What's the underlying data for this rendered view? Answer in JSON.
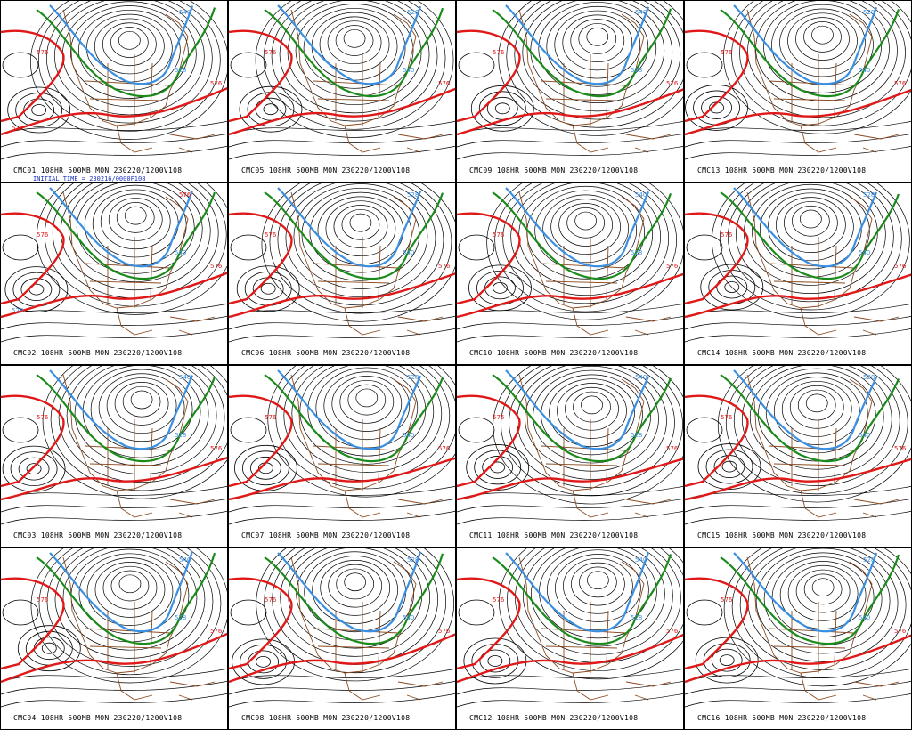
{
  "panels": [
    {
      "caption": "CMC01 108HR 500MB MON 230220/1200V108",
      "init": "INITIAL TIME = 230216/0000F108",
      "labels": [
        "576",
        "576",
        "540",
        "528",
        "576"
      ]
    },
    {
      "caption": "CMC05 108HR 500MB MON 230220/1200V108",
      "labels": [
        "576",
        "576",
        "528",
        "540"
      ]
    },
    {
      "caption": "CMC09 108HR 500MB MON 230220/1200V108",
      "labels": [
        "576",
        "576",
        "540",
        "528"
      ]
    },
    {
      "caption": "CMC13 108HR 500MB MON 230220/1200V108",
      "labels": [
        "576",
        "576",
        "528",
        "540"
      ]
    },
    {
      "caption": "CMC02 108HR 500MB MON 230220/1200V108",
      "labels": [
        "576",
        "576",
        "576",
        "540",
        "528"
      ]
    },
    {
      "caption": "CMC06 108HR 500MB MON 230220/1200V108",
      "labels": [
        "576",
        "576",
        "528",
        "540"
      ]
    },
    {
      "caption": "CMC10 108HR 500MB MON 230220/1200V108",
      "labels": [
        "576",
        "576",
        "540",
        "528"
      ]
    },
    {
      "caption": "CMC14 108HR 500MB MON 230220/1200V108",
      "labels": [
        "576",
        "576",
        "528",
        "540"
      ]
    },
    {
      "caption": "CMC03 108HR 500MB MON 230220/1200V108",
      "labels": [
        "576",
        "576",
        "540",
        "528"
      ]
    },
    {
      "caption": "CMC07 108HR 500MB MON 230220/1200V108",
      "labels": [
        "576",
        "576",
        "528",
        "540"
      ]
    },
    {
      "caption": "CMC11 108HR 500MB MON 230220/1200V108",
      "labels": [
        "576",
        "576",
        "540",
        "528"
      ]
    },
    {
      "caption": "CMC15 108HR 500MB MON 230220/1200V108",
      "labels": [
        "576",
        "576",
        "528",
        "540"
      ]
    },
    {
      "caption": "CMC04 108HR 500MB MON 230220/1200V108",
      "labels": [
        "576",
        "576",
        "540",
        "528"
      ]
    },
    {
      "caption": "CMC08 108HR 500MB MON 230220/1200V108",
      "labels": [
        "576",
        "576",
        "528",
        "540"
      ]
    },
    {
      "caption": "CMC12 108HR 500MB MON 230220/1200V108",
      "labels": [
        "576",
        "576",
        "540",
        "528"
      ]
    },
    {
      "caption": "CMC16 108HR 500MB MON 230220/1200V108",
      "labels": [
        "576",
        "576",
        "528",
        "540"
      ]
    }
  ],
  "colors": {
    "contour": "#000000",
    "c576": "#e01818",
    "c540": "#1a8a1a",
    "c528": "#3b8fe0",
    "geo": "#8b4a20",
    "init": "#1a2fbf"
  }
}
